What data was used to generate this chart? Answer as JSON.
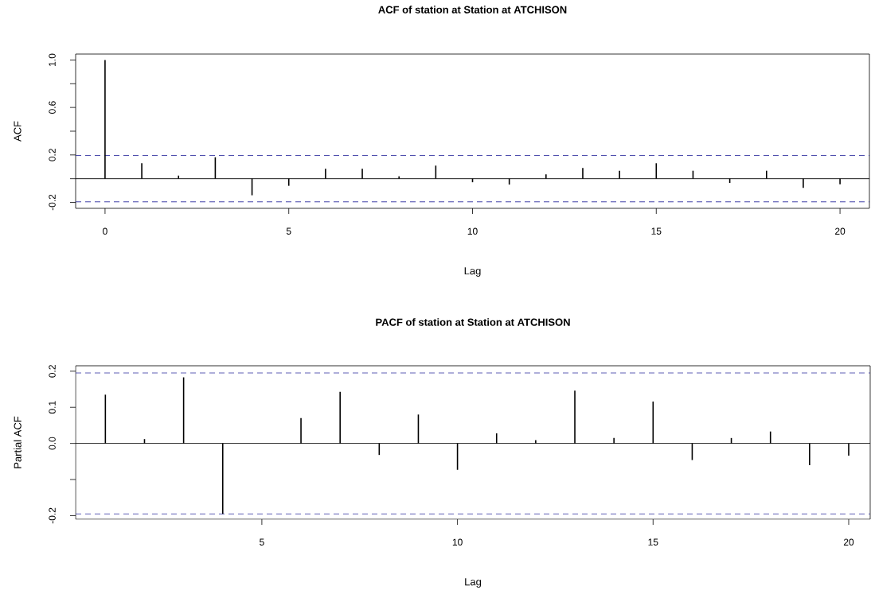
{
  "chart_data": [
    {
      "type": "bar",
      "title": "ACF of station at Station at ATCHISON",
      "xlabel": "Lag",
      "ylabel": "ACF",
      "x": [
        0,
        1,
        2,
        3,
        4,
        5,
        6,
        7,
        8,
        9,
        10,
        11,
        12,
        13,
        14,
        15,
        16,
        17,
        18,
        19,
        20
      ],
      "values": [
        1.0,
        0.13,
        0.026,
        0.18,
        -0.14,
        -0.06,
        0.084,
        0.084,
        0.02,
        0.11,
        -0.03,
        -0.05,
        0.036,
        0.09,
        0.067,
        0.13,
        0.067,
        -0.036,
        0.067,
        -0.077,
        -0.048
      ],
      "color": "#000000",
      "xlim": [
        -0.8,
        20.8
      ],
      "ylim": [
        -0.25,
        1.05
      ],
      "xticks": [
        0,
        5,
        10,
        15,
        20
      ],
      "yticks": [
        -0.2,
        {
          "value": 0,
          "label": null
        },
        0.2,
        {
          "value": 0.4,
          "label": null
        },
        0.6,
        {
          "value": 0.8,
          "label": null
        },
        {
          "value": 1,
          "label": "1.0"
        }
      ],
      "ref_lines": [
        {
          "axis": "y",
          "value": 0,
          "color": "#000000",
          "line_style": "solid"
        },
        {
          "axis": "y",
          "value": 0.195,
          "color": "#2b2b9e",
          "line_style": "dashed"
        },
        {
          "axis": "y",
          "value": -0.195,
          "color": "#2b2b9e",
          "line_style": "dashed"
        }
      ]
    },
    {
      "type": "bar",
      "title": "PACF of station at Station at ATCHISON",
      "xlabel": "Lag",
      "ylabel": "Partial ACF",
      "x": [
        1,
        2,
        3,
        4,
        5,
        6,
        7,
        8,
        9,
        10,
        11,
        12,
        13,
        14,
        15,
        16,
        17,
        18,
        19,
        20
      ],
      "values": [
        0.135,
        0.012,
        0.183,
        -0.195,
        null,
        0.07,
        0.143,
        -0.032,
        0.08,
        -0.073,
        0.028,
        0.009,
        0.146,
        0.015,
        0.116,
        -0.046,
        0.015,
        0.033,
        -0.06,
        -0.034
      ],
      "color": "#000000",
      "xlim": [
        0.24,
        20.55
      ],
      "ylim": [
        -0.21,
        0.215
      ],
      "xticks": [
        5,
        10,
        15,
        20
      ],
      "yticks": [
        -0.2,
        {
          "value": -0.1,
          "label": null
        },
        {
          "value": 0,
          "label": "0.0"
        },
        0.1,
        0.2
      ],
      "ref_lines": [
        {
          "axis": "y",
          "value": 0,
          "color": "#000000",
          "line_style": "solid"
        },
        {
          "axis": "y",
          "value": 0.195,
          "color": "#2b2b9e",
          "line_style": "dashed"
        },
        {
          "axis": "y",
          "value": -0.195,
          "color": "#2b2b9e",
          "line_style": "dashed"
        }
      ]
    }
  ]
}
